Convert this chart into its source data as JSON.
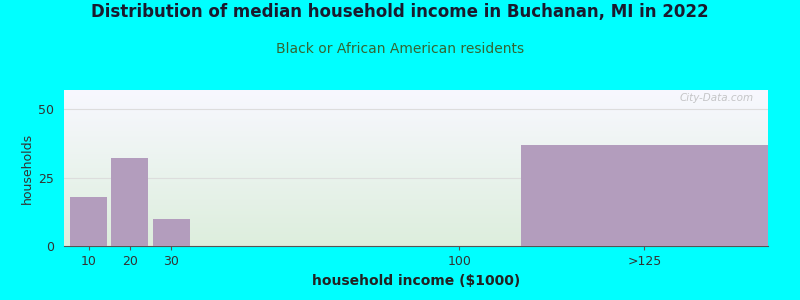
{
  "title": "Distribution of median household income in Buchanan, MI in 2022",
  "subtitle": "Black or African American residents",
  "xlabel": "household income ($1000)",
  "ylabel": "households",
  "bar_values": [
    18,
    32,
    10,
    0,
    37
  ],
  "bar_color": "#b39dbd",
  "bar_positions": [
    10,
    20,
    30,
    100,
    145
  ],
  "bar_widths": [
    9,
    9,
    9,
    9,
    60
  ],
  "xlim": [
    4,
    175
  ],
  "ylim": [
    0,
    57
  ],
  "yticks": [
    0,
    25,
    50
  ],
  "xtick_positions": [
    10,
    20,
    30,
    100,
    145
  ],
  "xtick_labels": [
    "10",
    "20",
    "30",
    "100",
    ">125"
  ],
  "bg_color": "#00ffff",
  "plot_bg_top_color": "#f8f8ff",
  "plot_bg_bottom_color": "#ddeedd",
  "grid_color": "#dddddd",
  "title_color": "#1a1a2e",
  "subtitle_color": "#336633",
  "watermark": "City-Data.com",
  "title_fontsize": 12,
  "subtitle_fontsize": 10
}
